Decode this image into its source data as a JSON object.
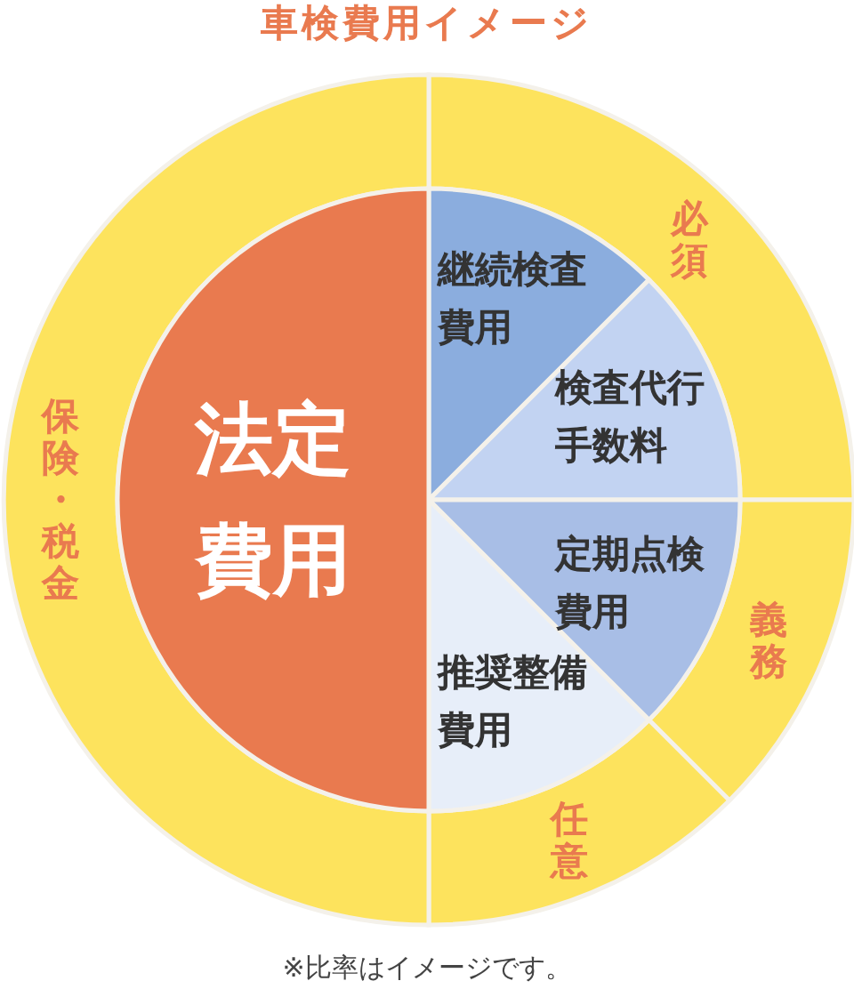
{
  "chart_data": [
    {
      "type": "pie",
      "title": "車検費用イメージ",
      "annotations": [
        "※比率はイメージです。"
      ],
      "categories": [
        "継続検査費用",
        "検査代行手数料",
        "定期点検費用",
        "推奨整備費用",
        "法定費用"
      ],
      "values": [
        12.5,
        12.5,
        12.5,
        12.5,
        50
      ],
      "colors": [
        "#8badde",
        "#c2d3f2",
        "#a8bee6",
        "#e7eef9",
        "#e97a4f"
      ]
    },
    {
      "type": "donut",
      "categories": [
        "必須",
        "義務",
        "任意",
        "保険・税金"
      ],
      "values": [
        25,
        12.5,
        12.5,
        50
      ],
      "color": "#fde35d"
    }
  ]
}
